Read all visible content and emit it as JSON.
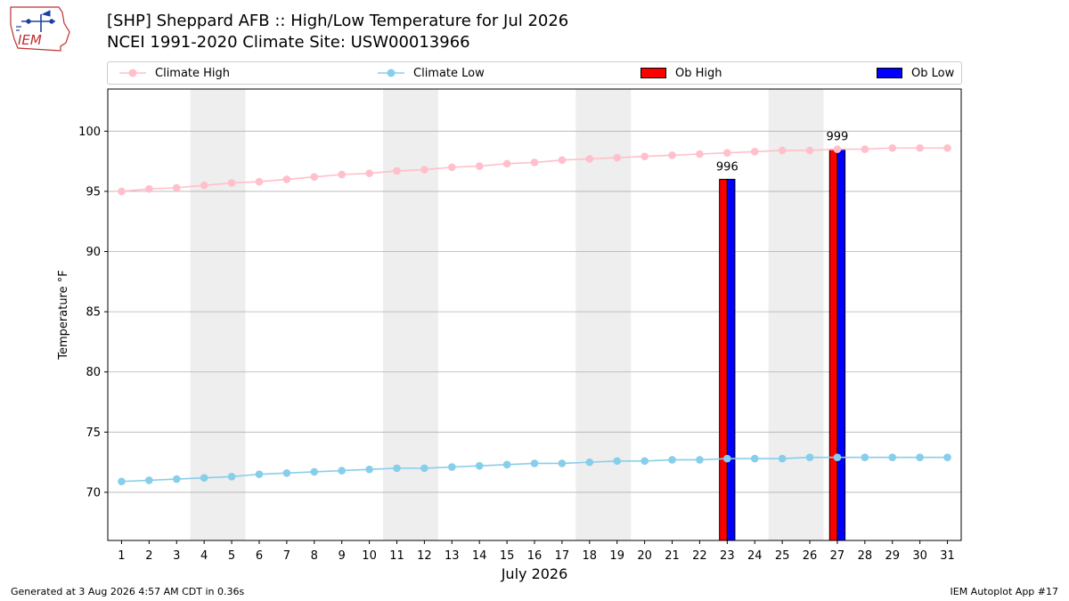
{
  "header": {
    "title": "[SHP] Sheppard AFB :: High/Low Temperature for Jul 2026",
    "subtitle": "NCEI 1991-2020 Climate Site: USW00013966",
    "logo_text": "IEM"
  },
  "legend": {
    "climate_high": "Climate High",
    "climate_low": "Climate Low",
    "ob_high": "Ob High",
    "ob_low": "Ob Low"
  },
  "footer": {
    "left": "Generated at 3 Aug 2026 4:57 AM CDT in 0.36s",
    "right": "IEM Autoplot App #17"
  },
  "colors": {
    "climate_high": "#ffc0cb",
    "climate_low": "#87ceeb",
    "ob_high": "#ff0000",
    "ob_low": "#0000ff",
    "weekend_shade": "#eeeeee",
    "grid": "#b0b0b0"
  },
  "chart_data": {
    "type": "bar",
    "xlabel": "July 2026",
    "ylabel": "Temperature °F",
    "xlim": [
      0.5,
      31.5
    ],
    "ylim": [
      66,
      103.5
    ],
    "yticks": [
      70,
      75,
      80,
      85,
      90,
      95,
      100
    ],
    "grid": "horizontal",
    "legend_position": "top",
    "x": [
      1,
      2,
      3,
      4,
      5,
      6,
      7,
      8,
      9,
      10,
      11,
      12,
      13,
      14,
      15,
      16,
      17,
      18,
      19,
      20,
      21,
      22,
      23,
      24,
      25,
      26,
      27,
      28,
      29,
      30,
      31
    ],
    "weekend_shading": [
      [
        4,
        5
      ],
      [
        11,
        12
      ],
      [
        18,
        19
      ],
      [
        25,
        26
      ]
    ],
    "series": [
      {
        "name": "Climate High",
        "kind": "line",
        "values": [
          95.0,
          95.2,
          95.3,
          95.5,
          95.7,
          95.8,
          96.0,
          96.2,
          96.4,
          96.5,
          96.7,
          96.8,
          97.0,
          97.1,
          97.3,
          97.4,
          97.6,
          97.7,
          97.8,
          97.9,
          98.0,
          98.1,
          98.2,
          98.3,
          98.4,
          98.4,
          98.5,
          98.5,
          98.6,
          98.6,
          98.6
        ]
      },
      {
        "name": "Climate Low",
        "kind": "line",
        "values": [
          70.9,
          71.0,
          71.1,
          71.2,
          71.3,
          71.5,
          71.6,
          71.7,
          71.8,
          71.9,
          72.0,
          72.0,
          72.1,
          72.2,
          72.3,
          72.4,
          72.4,
          72.5,
          72.6,
          72.6,
          72.7,
          72.7,
          72.8,
          72.8,
          72.8,
          72.9,
          72.9,
          72.9,
          72.9,
          72.9,
          72.9
        ]
      },
      {
        "name": "Ob High",
        "kind": "bar",
        "points": [
          {
            "x": 23,
            "y": 96
          },
          {
            "x": 27,
            "y": 98.5
          }
        ]
      },
      {
        "name": "Ob Low",
        "kind": "bar",
        "points": [
          {
            "x": 23,
            "y": 96
          },
          {
            "x": 27,
            "y": 98.5
          }
        ]
      }
    ],
    "annotations": [
      {
        "x": 23,
        "y": 96,
        "text": "996"
      },
      {
        "x": 27,
        "y": 98.5,
        "text": "999"
      }
    ]
  }
}
